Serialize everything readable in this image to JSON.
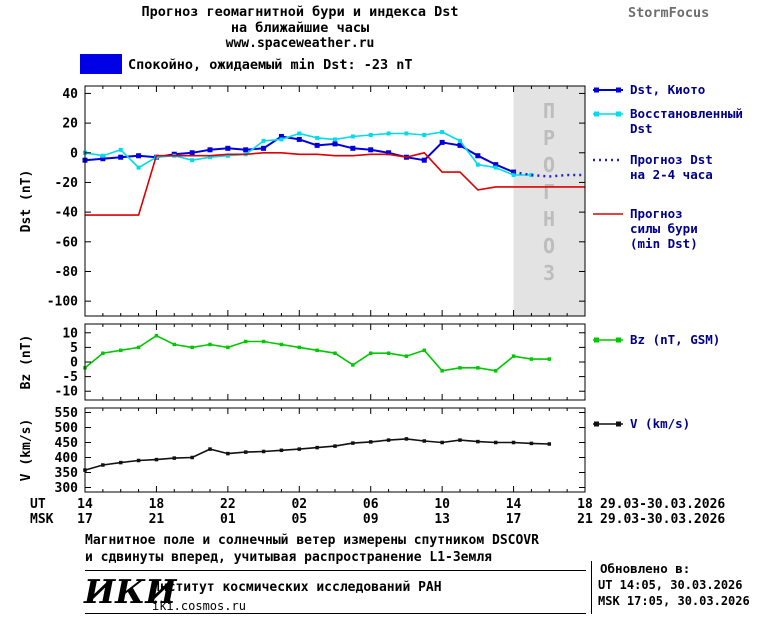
{
  "header": {
    "title_line1": "Прогноз геомагнитной бури и индекса Dst",
    "title_line2": "на ближайшие часы",
    "site": "www.spaceweather.ru",
    "brand": "StormFocus"
  },
  "status_banner": {
    "color": "#0000e6",
    "text": "Спокойно, ожидаемый min Dst: -23 nT"
  },
  "forecast_band": {
    "label": "ПРОГНОЗ"
  },
  "colors": {
    "dst_kyoto": "#0000dd",
    "dst_restored": "#00dcea",
    "dst_forecast": "#2222cc",
    "storm_forecast": "#dd0000",
    "bz": "#00c800",
    "v": "#111111",
    "legend_text": "#00008b",
    "forecast_band_fill": "#e3e3e3",
    "forecast_band_text": "#bdbdbd",
    "brand": "#6e6e6e"
  },
  "chart_data": [
    {
      "type": "line",
      "ylabel": "Dst (nT)",
      "ylim": [
        -110,
        45
      ],
      "yticks": [
        40,
        20,
        0,
        -20,
        -40,
        -60,
        -80,
        -100
      ],
      "xlim": [
        14,
        42
      ],
      "forecast_region_start": 38,
      "series": [
        {
          "id": "dst-kyoto",
          "name": "Dst, Киото",
          "legend_lines": [
            "Dst, Киото"
          ],
          "color": "#0000dd",
          "marker": "square",
          "marker_size": 5,
          "width": 2,
          "x": [
            14,
            15,
            16,
            17,
            18,
            19,
            20,
            21,
            22,
            23,
            24,
            25,
            26,
            27,
            28,
            29,
            30,
            31,
            32,
            33,
            34,
            35,
            36,
            37,
            38
          ],
          "y": [
            -5,
            -4,
            -3,
            -2,
            -3,
            -1,
            0,
            2,
            3,
            2,
            3,
            11,
            9,
            5,
            6,
            3,
            2,
            0,
            -3,
            -5,
            7,
            5,
            -2,
            -8,
            -13
          ]
        },
        {
          "id": "dst-restored",
          "name": "Восстановленный Dst",
          "legend_lines": [
            "Восстановленный",
            "Dst"
          ],
          "color": "#00dcea",
          "marker": "square",
          "marker_size": 4,
          "width": 1.6,
          "x": [
            14,
            15,
            16,
            17,
            18,
            19,
            20,
            21,
            22,
            23,
            24,
            25,
            26,
            27,
            28,
            29,
            30,
            31,
            32,
            33,
            34,
            35,
            36,
            37,
            38,
            39
          ],
          "y": [
            0,
            -2,
            2,
            -10,
            -3,
            -2,
            -5,
            -3,
            -2,
            -1,
            8,
            9,
            13,
            10,
            9,
            11,
            12,
            13,
            13,
            12,
            14,
            8,
            -8,
            -10,
            -15,
            -15
          ]
        },
        {
          "id": "dst-forecast",
          "name": "Прогноз Dst на 2-4 часа",
          "legend_lines": [
            "Прогноз Dst",
            "на 2-4 часа"
          ],
          "color": "#2222cc",
          "style": "dotted",
          "width": 2.4,
          "x": [
            38,
            39,
            40,
            41,
            42
          ],
          "y": [
            -13,
            -15,
            -16,
            -15,
            -15
          ]
        },
        {
          "id": "storm-forecast",
          "name": "Прогноз силы бури (min Dst)",
          "legend_lines": [
            "Прогноз",
            "силы бури",
            "(min Dst)"
          ],
          "color": "#dd0000",
          "width": 1.6,
          "x": [
            14,
            15,
            16,
            17,
            18,
            19,
            20,
            21,
            22,
            23,
            24,
            25,
            26,
            27,
            28,
            29,
            30,
            31,
            32,
            33,
            34,
            35,
            36,
            37,
            38,
            39,
            40,
            41,
            42
          ],
          "y": [
            -42,
            -42,
            -42,
            -42,
            -2,
            -2,
            -2,
            -2,
            -1,
            -1,
            0,
            0,
            -1,
            -1,
            -2,
            -2,
            -1,
            -1,
            -3,
            0,
            -13,
            -13,
            -25,
            -23,
            -23,
            -23,
            -23,
            -23,
            -23
          ]
        }
      ]
    },
    {
      "type": "line",
      "ylabel": "Bz (nT)",
      "ylim": [
        -13,
        13
      ],
      "yticks": [
        10,
        5,
        0,
        -5,
        -10
      ],
      "xlim": [
        14,
        42
      ],
      "series": [
        {
          "id": "bz",
          "name": "Bz (nT, GSM)",
          "legend_lines": [
            "Bz (nT, GSM)"
          ],
          "color": "#00c800",
          "marker": "square",
          "marker_size": 3.5,
          "width": 1.6,
          "x": [
            14,
            15,
            16,
            17,
            18,
            19,
            20,
            21,
            22,
            23,
            24,
            25,
            26,
            27,
            28,
            29,
            30,
            31,
            32,
            33,
            34,
            35,
            36,
            37,
            38,
            39,
            40
          ],
          "y": [
            -2,
            3,
            4,
            5,
            9,
            6,
            5,
            6,
            5,
            7,
            7,
            6,
            5,
            4,
            3,
            -1,
            3,
            3,
            2,
            4,
            -3,
            -2,
            -2,
            -3,
            2,
            1,
            1
          ]
        }
      ]
    },
    {
      "type": "line",
      "ylabel": "V (km/s)",
      "ylim": [
        285,
        565
      ],
      "yticks": [
        550,
        500,
        450,
        400,
        350,
        300
      ],
      "xlim": [
        14,
        42
      ],
      "series": [
        {
          "id": "v",
          "name": "V (km/s)",
          "legend_lines": [
            "V (km/s)"
          ],
          "color": "#111111",
          "marker": "square",
          "marker_size": 3.5,
          "width": 1.6,
          "x": [
            14,
            15,
            16,
            17,
            18,
            19,
            20,
            21,
            22,
            23,
            24,
            25,
            26,
            27,
            28,
            29,
            30,
            31,
            32,
            33,
            34,
            35,
            36,
            37,
            38,
            39,
            40
          ],
          "y": [
            358,
            375,
            383,
            390,
            393,
            398,
            400,
            428,
            413,
            418,
            420,
            424,
            428,
            433,
            438,
            448,
            452,
            458,
            462,
            455,
            450,
            458,
            453,
            450,
            450,
            447,
            445
          ]
        }
      ]
    }
  ],
  "xaxis": {
    "ut_label": "UT",
    "msk_label": "MSK",
    "ut_ticks": [
      "14",
      "18",
      "22",
      "02",
      "06",
      "10",
      "14",
      "18"
    ],
    "msk_ticks": [
      "17",
      "21",
      "01",
      "05",
      "09",
      "13",
      "17",
      "21"
    ],
    "ut_daterange": "29.03-30.03.2026",
    "msk_daterange": "29.03-30.03.2026"
  },
  "footnote": {
    "line1": "Магнитное поле и солнечный ветер измерены спутником DSCOVR",
    "line2": "и сдвинуты вперед, учитывая распространение L1-Земля"
  },
  "updated": {
    "label": "Обновлено в:",
    "ut": "UT  14:05, 30.03.2026",
    "msk": "MSK 17:05, 30.03.2026"
  },
  "footer": {
    "logo": "ИКИ",
    "institute": "Институт космических исследований РАН",
    "site": "iki.cosmos.ru"
  }
}
